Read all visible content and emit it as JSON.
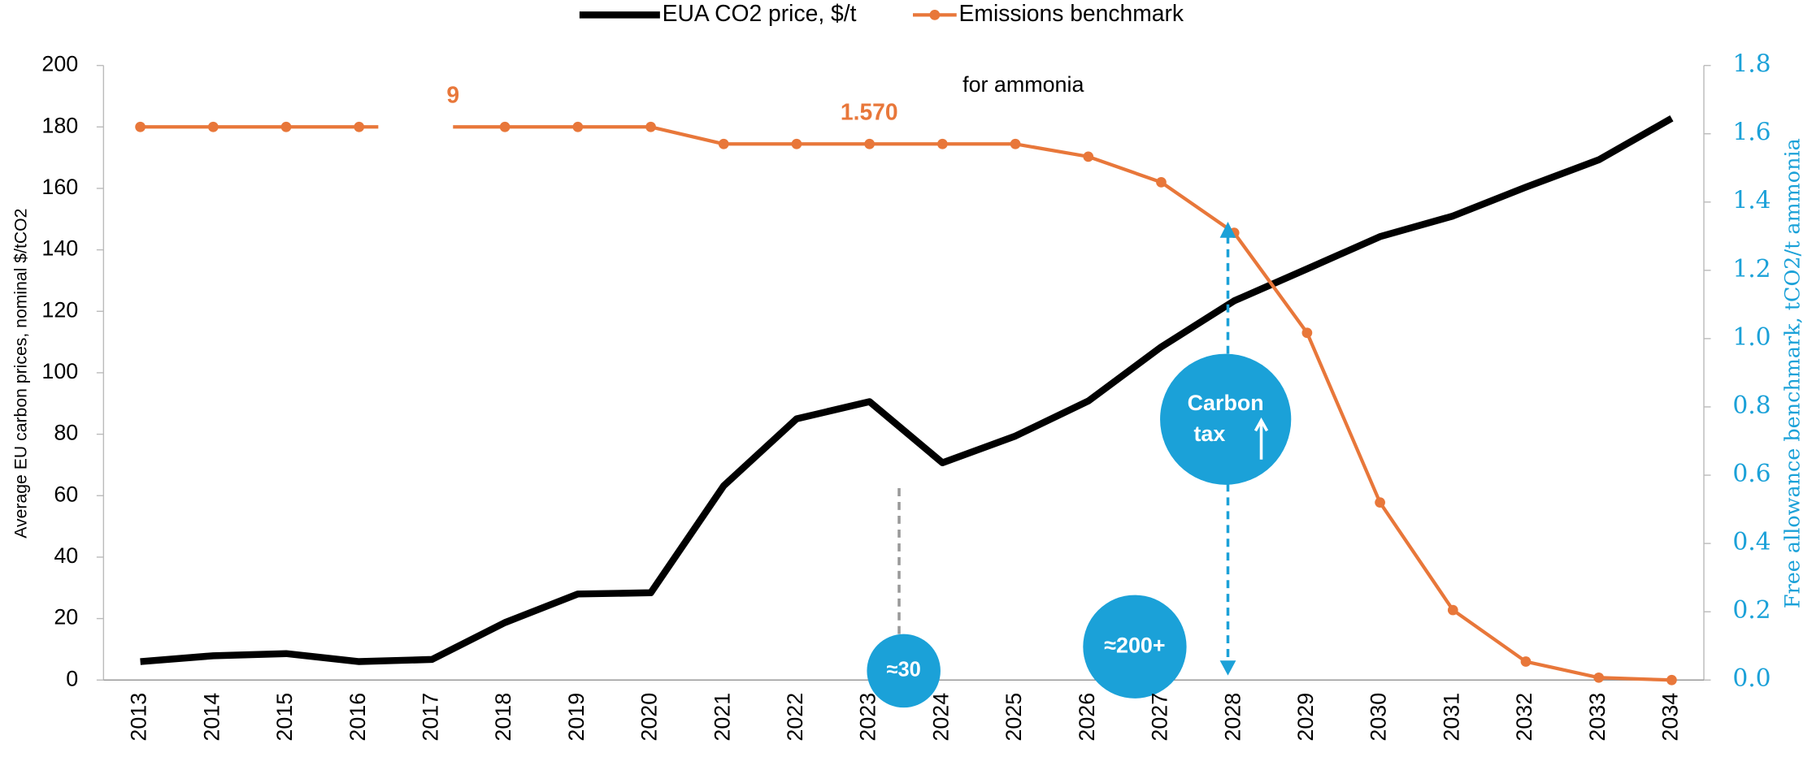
{
  "chart_data": {
    "type": "line",
    "legend": "top",
    "y_label": "Average EU carbon prices, nominal $/tCO2",
    "y2_label": "Free allowance benchmark, tCO2/t ammonia",
    "categories": [
      "2013",
      "2014",
      "2015",
      "2016",
      "2017",
      "2018",
      "2019",
      "2020",
      "2021",
      "2022",
      "2023",
      "2024",
      "2025",
      "2026",
      "2027",
      "2028",
      "2029",
      "2030",
      "2031",
      "2032",
      "2033",
      "2034"
    ],
    "series": [
      {
        "name": "EUA CO2 price, $/t",
        "color": "#000000",
        "values": [
          6,
          7.9,
          8.6,
          6,
          6.7,
          18.7,
          28,
          28.4,
          63.2,
          85,
          90.6,
          70.7,
          79.4,
          90.8,
          108.4,
          123.4,
          133.8,
          144.3,
          151,
          160.4,
          169.3,
          182.8
        ]
      },
      {
        "name": "Emissions benchmark",
        "color": "#e8773a",
        "axis": "y2",
        "values": [
          1.62,
          1.62,
          1.62,
          1.62,
          1.62,
          1.62,
          1.62,
          1.62,
          1.57,
          1.57,
          1.57,
          1.57,
          1.57,
          1.533,
          1.458,
          1.31,
          1.017,
          0.52,
          0.205,
          0.054,
          0.007,
          0
        ]
      }
    ],
    "ylim": [
      0,
      200
    ],
    "yticks": [
      0,
      20,
      40,
      60,
      80,
      100,
      120,
      140,
      160,
      180,
      200
    ],
    "y2lim": [
      0,
      1.8
    ],
    "y2ticks": [
      {
        "value": 0,
        "label": "0.0"
      },
      0.2,
      0.4,
      0.6,
      0.8,
      {
        "value": 1,
        "label": "1.0"
      },
      1.2,
      1.4,
      1.6,
      1.8
    ],
    "y2_color": "#1ba1d8",
    "annotations": [
      "9",
      "1.570",
      "for ammonia",
      "Carbon",
      "tax",
      "≈30",
      "≈200+"
    ]
  }
}
